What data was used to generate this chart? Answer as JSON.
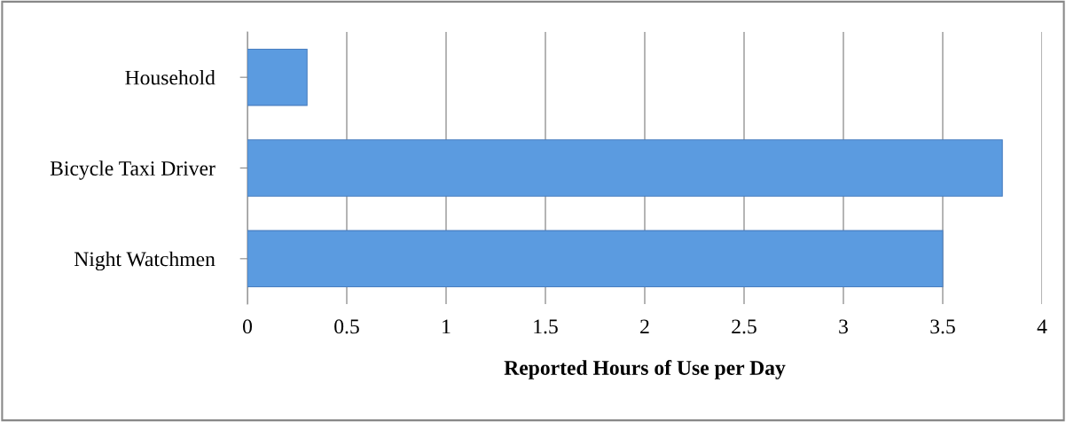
{
  "chart_data": {
    "type": "bar",
    "orientation": "horizontal",
    "xlabel": "Reported Hours of Use per Day",
    "categories": [
      "Household",
      "Bicycle Taxi Driver",
      "Night Watchmen"
    ],
    "values": [
      0.3,
      3.8,
      3.5
    ],
    "color": "#5b9be0",
    "xlim": [
      0,
      4
    ],
    "xticks": [
      0,
      0.5,
      1,
      1.5,
      2,
      2.5,
      3,
      3.5,
      4
    ],
    "grid": "x"
  }
}
